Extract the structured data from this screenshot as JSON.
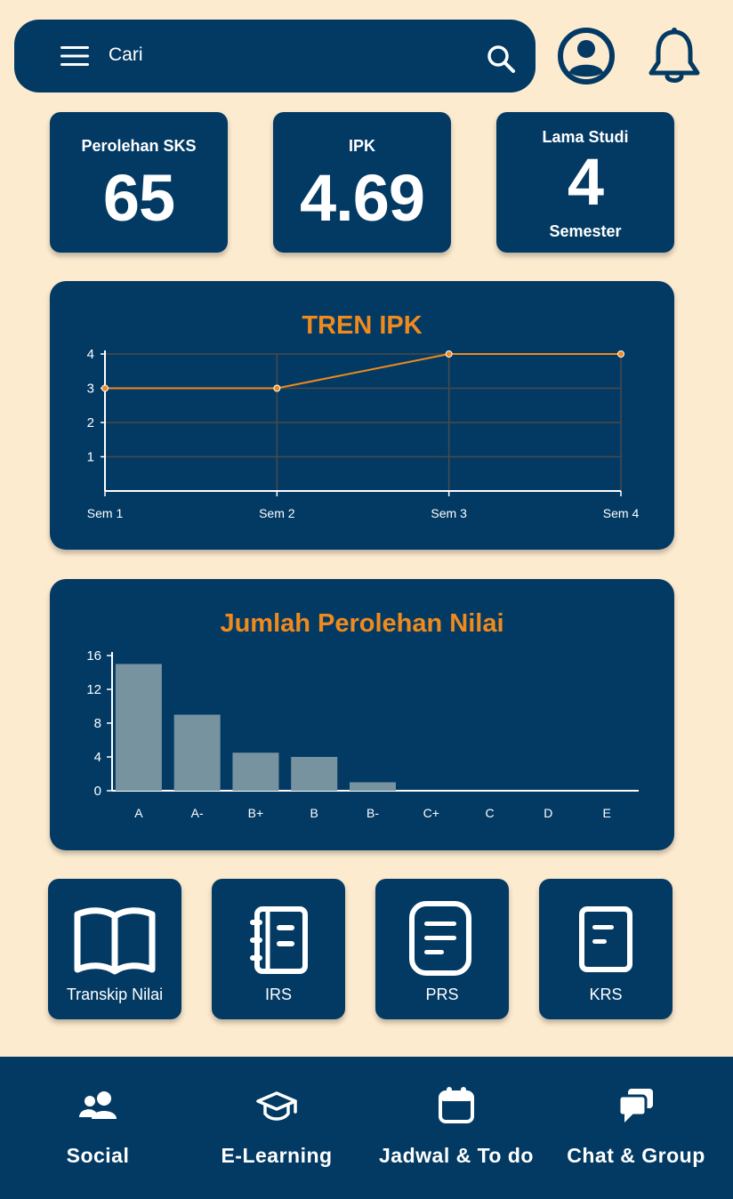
{
  "search": {
    "placeholder": "Cari"
  },
  "stats": [
    {
      "label": "Perolehan SKS",
      "value": "65"
    },
    {
      "label": "IPK",
      "value": "4.69"
    },
    {
      "label": "Lama Studi",
      "value": "4",
      "unit": "Semester"
    }
  ],
  "trend": {
    "title": "TREN IPK"
  },
  "grades": {
    "title": "Jumlah Perolehan Nilai"
  },
  "chart_data": [
    {
      "type": "line",
      "title": "TREN IPK",
      "categories": [
        "Sem 1",
        "Sem 2",
        "Sem 3",
        "Sem 4"
      ],
      "values": [
        3,
        3,
        4,
        4
      ],
      "ylim": [
        0,
        4
      ],
      "yticks": [
        1,
        2,
        3,
        4
      ],
      "grid": true,
      "color": "#f08a1c"
    },
    {
      "type": "bar",
      "title": "Jumlah Perolehan Nilai",
      "categories": [
        "A",
        "A-",
        "B+",
        "B",
        "B-",
        "C+",
        "C",
        "D",
        "E"
      ],
      "values": [
        15,
        9,
        4.5,
        4,
        1,
        0,
        0,
        0,
        0
      ],
      "ylim": [
        0,
        16
      ],
      "yticks": [
        0,
        4,
        8,
        12,
        16
      ],
      "grid": false,
      "color": "#7793a0"
    }
  ],
  "tiles": [
    {
      "label": "Transkip Nilai",
      "icon": "book-icon"
    },
    {
      "label": "IRS",
      "icon": "notebook-icon"
    },
    {
      "label": "PRS",
      "icon": "document-icon"
    },
    {
      "label": "KRS",
      "icon": "form-icon"
    }
  ],
  "nav": [
    {
      "label": "Social",
      "icon": "users-icon"
    },
    {
      "label": "E-Learning",
      "icon": "graduation-cap-icon"
    },
    {
      "label": "Jadwal & To do",
      "icon": "calendar-icon"
    },
    {
      "label": "Chat & Group",
      "icon": "chat-icon"
    }
  ],
  "colors": {
    "navy": "#033a64",
    "background": "#fdebd0",
    "accent": "#f08a1c",
    "bar": "#7793a0"
  }
}
